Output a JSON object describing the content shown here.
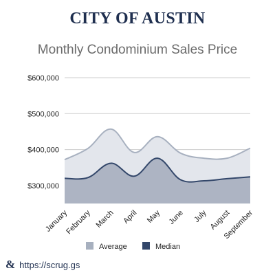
{
  "header": {
    "org_title": "CITY OF AUSTIN",
    "chart_title": "Monthly Condominium Sales Price"
  },
  "footer": {
    "logo_glyph": "&",
    "url": "https://scrug.gs"
  },
  "colors": {
    "average_fill": "#e3e6ec",
    "average_line": "#a7b0bf",
    "median_fill": "#adb4c3",
    "median_line": "#33476a",
    "grid": "#cccccc",
    "title": "#1f2f4f"
  },
  "chart_data": {
    "type": "area",
    "title": "Monthly Condominium Sales Price",
    "xlabel": "",
    "ylabel": "",
    "categories": [
      "January",
      "February",
      "March",
      "April",
      "May",
      "June",
      "July",
      "August",
      "September"
    ],
    "series": [
      {
        "name": "Average",
        "values": [
          372000,
          403000,
          457000,
          392000,
          436000,
          390000,
          376000,
          376000,
          404000
        ]
      },
      {
        "name": "Median",
        "values": [
          320000,
          322000,
          362000,
          326000,
          376000,
          316000,
          313000,
          319000,
          324000
        ]
      }
    ],
    "ylim": [
      250000,
      600000
    ],
    "yticks": [
      300000,
      400000,
      500000,
      600000
    ],
    "ytick_labels": [
      "$300,000",
      "$400,000",
      "$500,000",
      "$600,000"
    ],
    "grid": true,
    "legend": {
      "position": "bottom",
      "entries": [
        "Average",
        "Median"
      ]
    }
  }
}
